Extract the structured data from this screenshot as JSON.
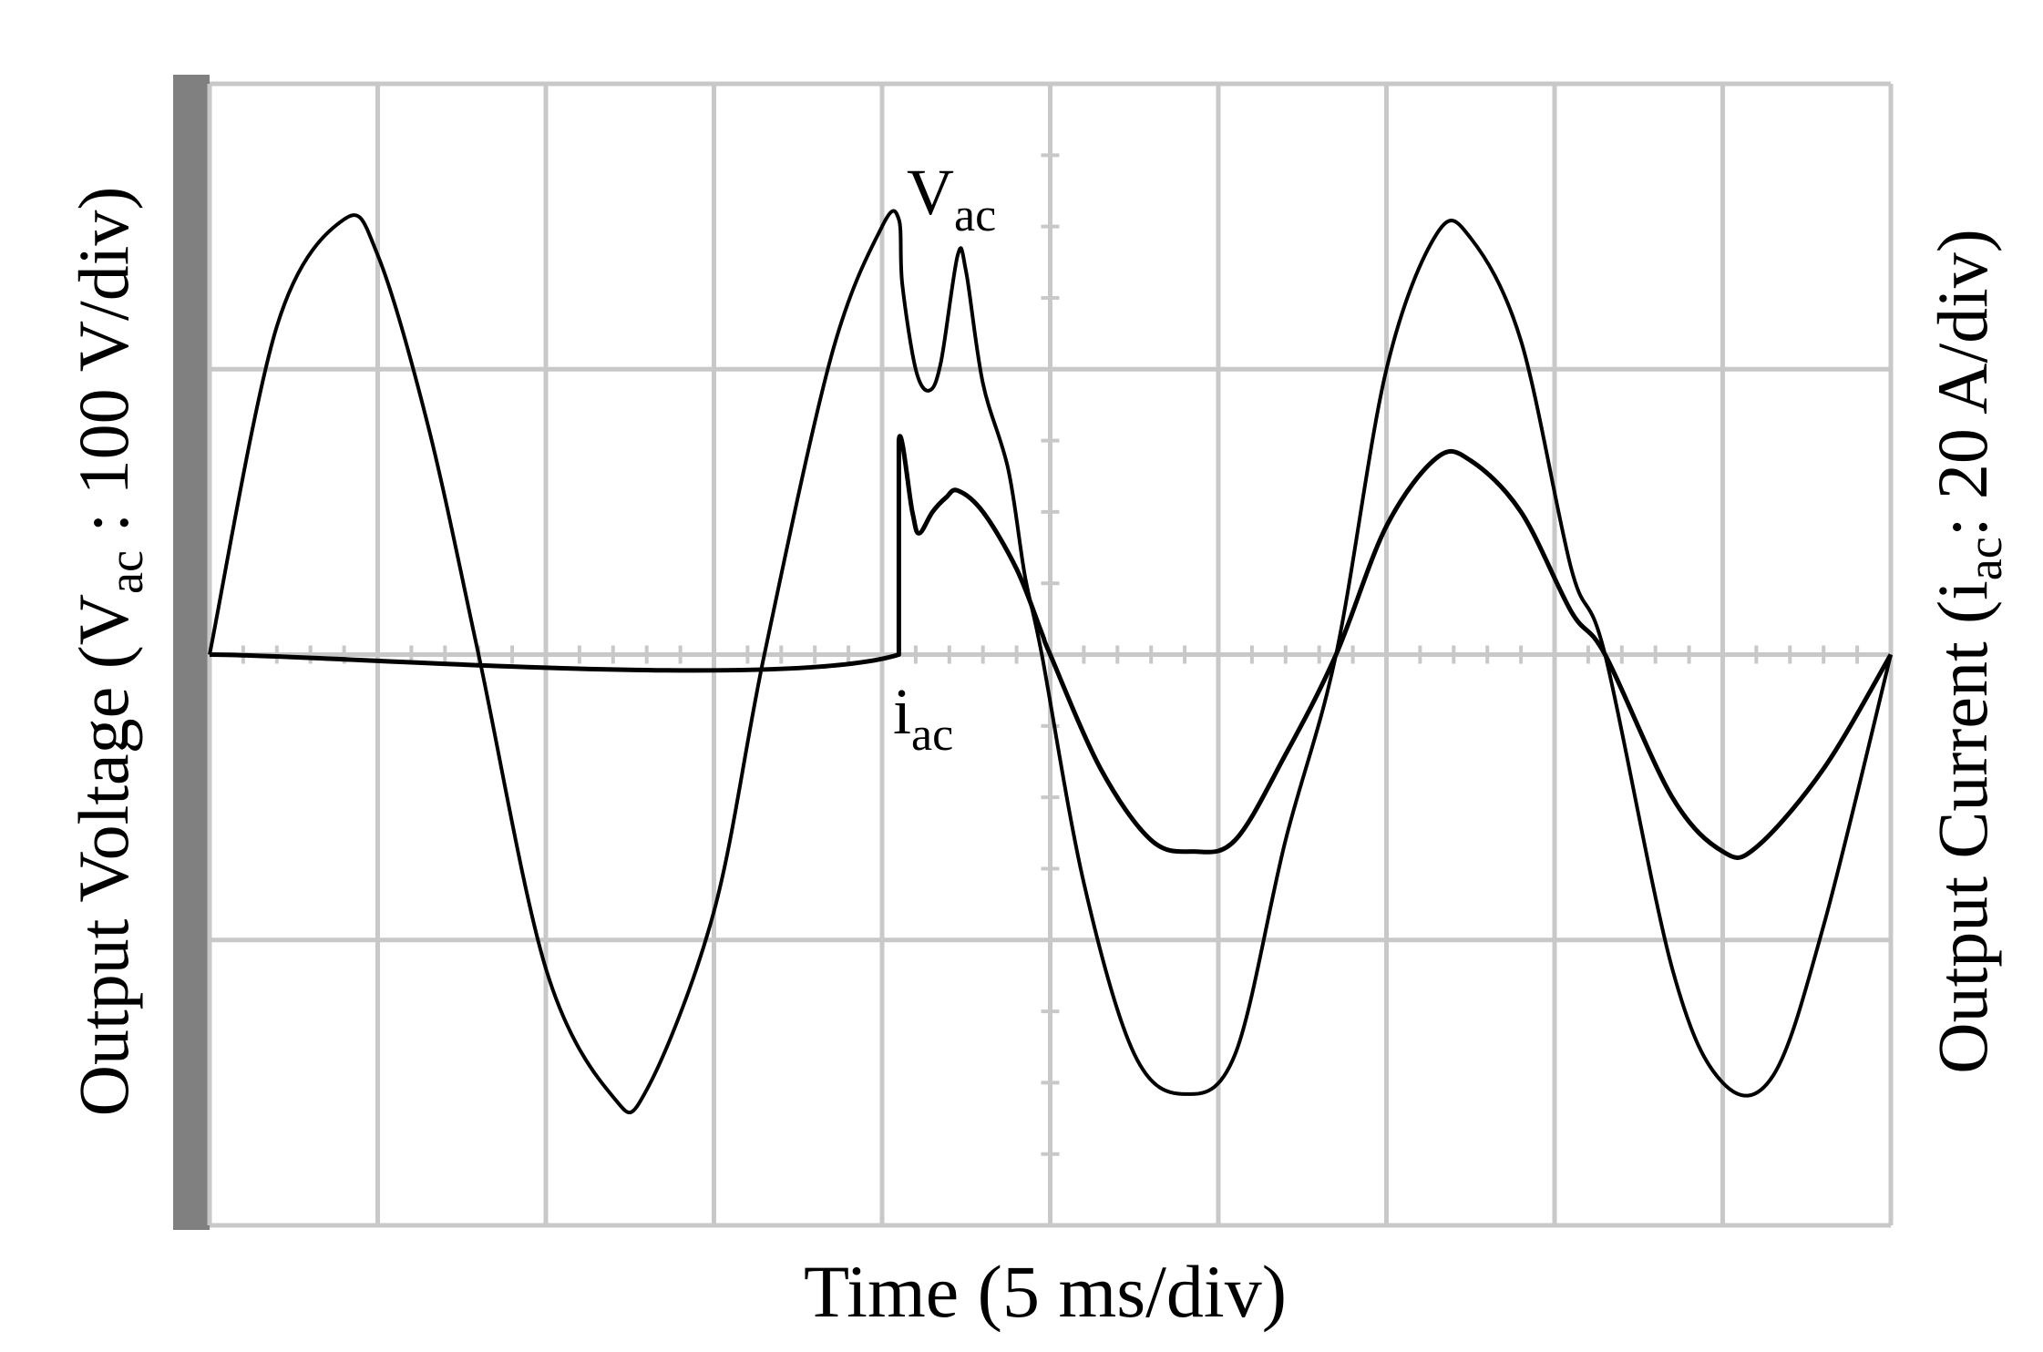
{
  "chart_data": {
    "type": "line",
    "title": "",
    "xlabel": "Time (5 ms/div)",
    "ylabel_left": {
      "prefix": "Output Voltage (V",
      "sub": "ac",
      "suffix": " : 100 V/div)"
    },
    "ylabel_right": {
      "prefix": "Output Current (i",
      "sub": "ac",
      "suffix": ": 20 A/div)"
    },
    "grid": true,
    "x_divisions": 10,
    "y_divisions": 8,
    "xlim_div": [
      0,
      10
    ],
    "ylim_div": [
      -4,
      4
    ],
    "colors": {
      "grid": "#c8c8c8",
      "trace": "#000000",
      "left_bar": "#808080"
    },
    "series": [
      {
        "name": "Vac",
        "label": {
          "main": "V",
          "sub": "ac"
        },
        "points": [
          [
            0,
            0
          ],
          [
            0.4,
            2.3
          ],
          [
            0.8,
            3.05
          ],
          [
            1.0,
            2.8
          ],
          [
            1.3,
            1.6
          ],
          [
            1.6,
            0
          ],
          [
            2.0,
            -2.2
          ],
          [
            2.4,
            -3.1
          ],
          [
            2.6,
            -3.05
          ],
          [
            3.0,
            -1.8
          ],
          [
            3.3,
            0
          ],
          [
            3.7,
            2.1
          ],
          [
            4.0,
            3.0
          ],
          [
            4.1,
            3.05
          ],
          [
            4.12,
            2.6
          ],
          [
            4.2,
            2.0
          ],
          [
            4.28,
            1.85
          ],
          [
            4.35,
            2.05
          ],
          [
            4.45,
            2.8
          ],
          [
            4.5,
            2.68
          ],
          [
            4.6,
            1.9
          ],
          [
            4.75,
            1.3
          ],
          [
            4.85,
            0.55
          ],
          [
            4.95,
            0
          ],
          [
            5.2,
            -1.6
          ],
          [
            5.5,
            -2.8
          ],
          [
            5.8,
            -3.08
          ],
          [
            6.1,
            -2.8
          ],
          [
            6.4,
            -1.3
          ],
          [
            6.7,
            0
          ],
          [
            7.0,
            2.0
          ],
          [
            7.3,
            2.95
          ],
          [
            7.5,
            2.92
          ],
          [
            7.8,
            2.2
          ],
          [
            8.1,
            0.6
          ],
          [
            8.3,
            0
          ],
          [
            8.7,
            -2.2
          ],
          [
            9.0,
            -3.0
          ],
          [
            9.3,
            -2.95
          ],
          [
            9.6,
            -1.9
          ],
          [
            10.0,
            0
          ]
        ]
      },
      {
        "name": "iac",
        "label": {
          "main": "i",
          "sub": "ac"
        },
        "points": [
          [
            0,
            0
          ],
          [
            4.1,
            0
          ],
          [
            4.1,
            1.5
          ],
          [
            4.18,
            1.0
          ],
          [
            4.22,
            0.85
          ],
          [
            4.3,
            1.0
          ],
          [
            4.38,
            1.1
          ],
          [
            4.45,
            1.15
          ],
          [
            4.6,
            1.0
          ],
          [
            4.8,
            0.6
          ],
          [
            4.95,
            0.15
          ],
          [
            5.0,
            0
          ],
          [
            5.3,
            -0.8
          ],
          [
            5.6,
            -1.3
          ],
          [
            5.85,
            -1.38
          ],
          [
            6.1,
            -1.3
          ],
          [
            6.4,
            -0.7
          ],
          [
            6.7,
            0
          ],
          [
            7.0,
            0.9
          ],
          [
            7.3,
            1.38
          ],
          [
            7.5,
            1.36
          ],
          [
            7.8,
            1.0
          ],
          [
            8.1,
            0.3
          ],
          [
            8.3,
            0
          ],
          [
            8.7,
            -1.0
          ],
          [
            9.0,
            -1.38
          ],
          [
            9.2,
            -1.35
          ],
          [
            9.6,
            -0.8
          ],
          [
            10.0,
            0
          ]
        ]
      }
    ]
  }
}
